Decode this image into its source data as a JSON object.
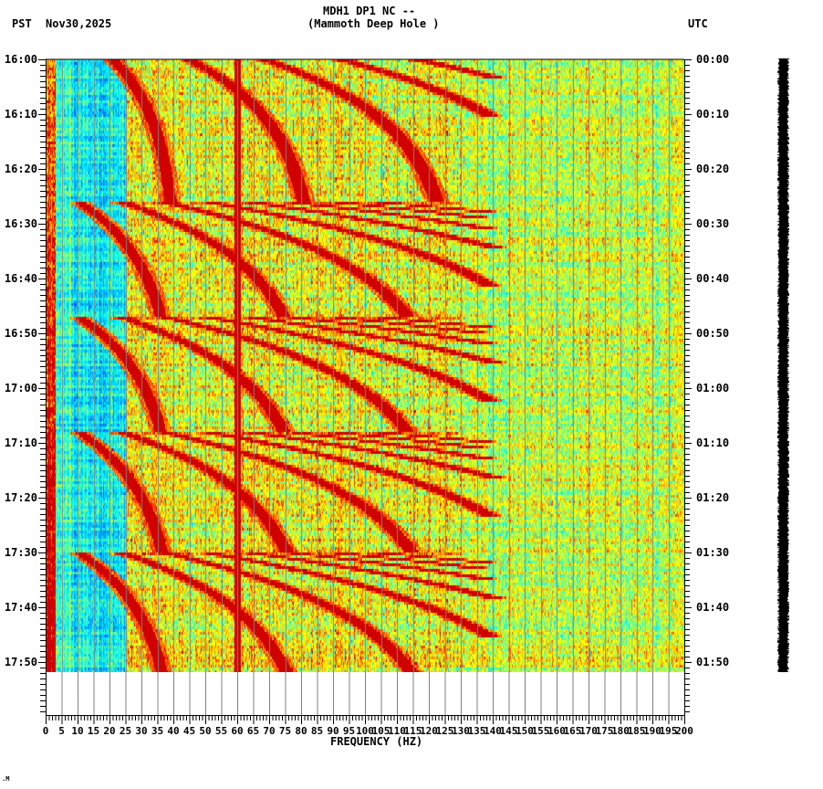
{
  "header": {
    "station_line": "MDH1 DP1 NC --",
    "station_name": "(Mammoth Deep Hole )",
    "left_timezone": "PST",
    "date": "Nov30,2025",
    "right_timezone": "UTC"
  },
  "footer": {
    "mark": ".M"
  },
  "colors": {
    "background": "#ffffff",
    "gridline": "#808080",
    "axis": "#000000",
    "colormap": [
      "#0050ff",
      "#00a0ff",
      "#00e8ff",
      "#40ffc0",
      "#a0ff60",
      "#ffff00",
      "#ffb000",
      "#ff4000",
      "#d00000",
      "#800000"
    ]
  },
  "chart_data": {
    "type": "heatmap",
    "title": "MDH1 DP1 NC -- (Mammoth Deep Hole )",
    "subtitle": "PST Nov30,2025 / UTC",
    "xlabel": "FREQUENCY (HZ)",
    "ylabel_left": "PST",
    "ylabel_right": "UTC",
    "xlim": [
      0,
      200
    ],
    "x_ticks": [
      0,
      5,
      10,
      15,
      20,
      25,
      30,
      35,
      40,
      45,
      50,
      55,
      60,
      65,
      70,
      75,
      80,
      85,
      90,
      95,
      100,
      105,
      110,
      115,
      120,
      125,
      130,
      135,
      140,
      145,
      150,
      155,
      160,
      165,
      170,
      175,
      180,
      185,
      190,
      195,
      200
    ],
    "y_ticks_left": [
      "16:00",
      "16:10",
      "16:20",
      "16:30",
      "16:40",
      "16:50",
      "17:00",
      "17:10",
      "17:20",
      "17:30",
      "17:40",
      "17:50"
    ],
    "y_ticks_right": [
      "00:00",
      "00:10",
      "00:20",
      "00:30",
      "00:40",
      "00:50",
      "01:00",
      "01:10",
      "01:20",
      "01:30",
      "01:40",
      "01:50"
    ],
    "grid": "vertical lines every 5 Hz",
    "features": {
      "constant_line_hz": 60,
      "gliding_harmonics_fundamental_start_hz": 20,
      "glide_reset_times_pst": [
        "16:26",
        "16:47",
        "17:08",
        "17:30"
      ],
      "low_freq_blue_band_hz": [
        3,
        25
      ],
      "high_energy_low_freq_hz": [
        0,
        5
      ]
    },
    "data_end_time_pst": "17:56"
  }
}
